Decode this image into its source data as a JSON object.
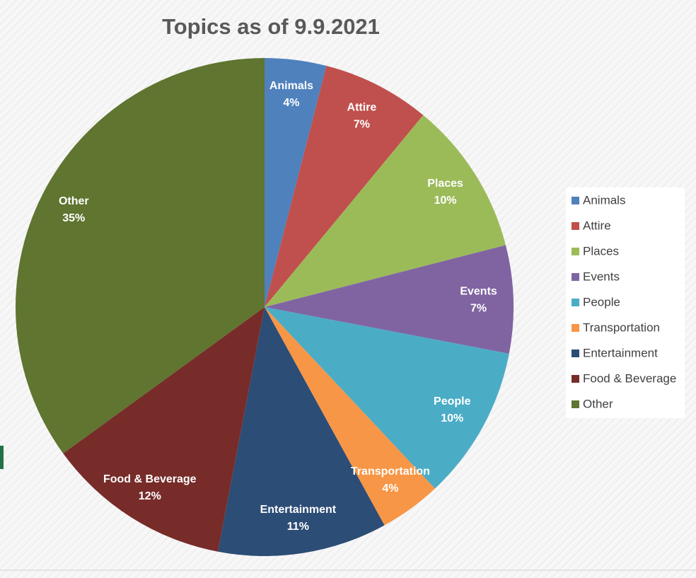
{
  "chart_data": {
    "type": "pie",
    "title": "Topics as of 9.9.2021",
    "categories": [
      "Animals",
      "Attire",
      "Places",
      "Events",
      "People",
      "Transportation",
      "Entertainment",
      "Food & Beverage",
      "Other"
    ],
    "values": [
      4,
      7,
      10,
      7,
      10,
      4,
      11,
      12,
      35
    ],
    "value_labels": [
      "4%",
      "7%",
      "10%",
      "7%",
      "10%",
      "4%",
      "11%",
      "12%",
      "35%"
    ],
    "colors": [
      "#4f81bd",
      "#c0504d",
      "#9bbb59",
      "#8064a2",
      "#4bacc6",
      "#f79646",
      "#2c4d75",
      "#772c2a",
      "#5f7530"
    ],
    "legend": "right"
  }
}
